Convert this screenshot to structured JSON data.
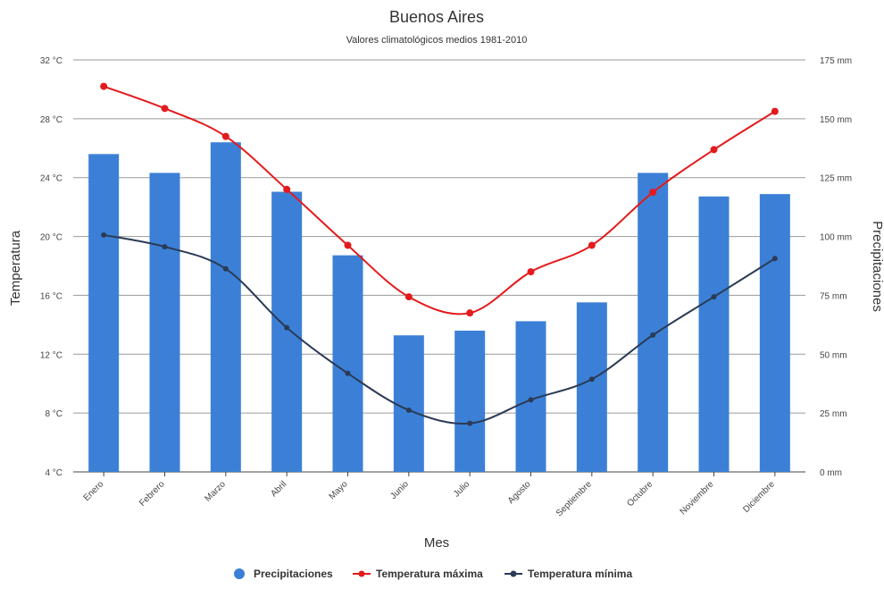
{
  "chart_data": {
    "type": "bar+line",
    "title": "Buenos Aires",
    "subtitle": "Valores climatológicos medios 1981-2010",
    "xlabel": "Mes",
    "ylabel_left": "Temperatura",
    "ylabel_right": "Precipitaciones",
    "categories": [
      "Enero",
      "Febrero",
      "Marzo",
      "Abril",
      "Mayo",
      "Junio",
      "Julio",
      "Agosto",
      "Septiembre",
      "Octubre",
      "Noviembre",
      "Diciembre"
    ],
    "left_axis": {
      "min": 4,
      "max": 32,
      "ticks": [
        4,
        8,
        12,
        16,
        20,
        24,
        28,
        32
      ],
      "tick_labels": [
        "4 °C",
        "8 °C",
        "12 °C",
        "16 °C",
        "20 °C",
        "24 °C",
        "28 °C",
        "32 °C"
      ]
    },
    "right_axis": {
      "min": 0,
      "max": 175,
      "ticks": [
        0,
        25,
        50,
        75,
        100,
        125,
        150,
        175
      ],
      "tick_labels": [
        "0 mm",
        "25 mm",
        "50 mm",
        "75 mm",
        "100 mm",
        "125 mm",
        "150 mm",
        "175 mm"
      ]
    },
    "grid": true,
    "legend_position": "bottom",
    "series": [
      {
        "name": "Precipitaciones",
        "type": "bar",
        "axis": "right",
        "color": "#3b80d6",
        "values": [
          135,
          127,
          140,
          119,
          92,
          58,
          60,
          64,
          72,
          127,
          117,
          118
        ]
      },
      {
        "name": "Temperatura máxima",
        "type": "line",
        "axis": "left",
        "color": "#e41a1c",
        "values": [
          30.2,
          28.7,
          26.8,
          23.2,
          19.4,
          15.9,
          14.8,
          17.6,
          19.4,
          23.0,
          25.9,
          28.5
        ]
      },
      {
        "name": "Temperatura mínima",
        "type": "line",
        "axis": "left",
        "color": "#2b3a55",
        "values": [
          20.1,
          19.3,
          17.8,
          13.8,
          10.7,
          8.2,
          7.3,
          8.9,
          10.3,
          13.3,
          15.9,
          18.5
        ]
      }
    ]
  }
}
